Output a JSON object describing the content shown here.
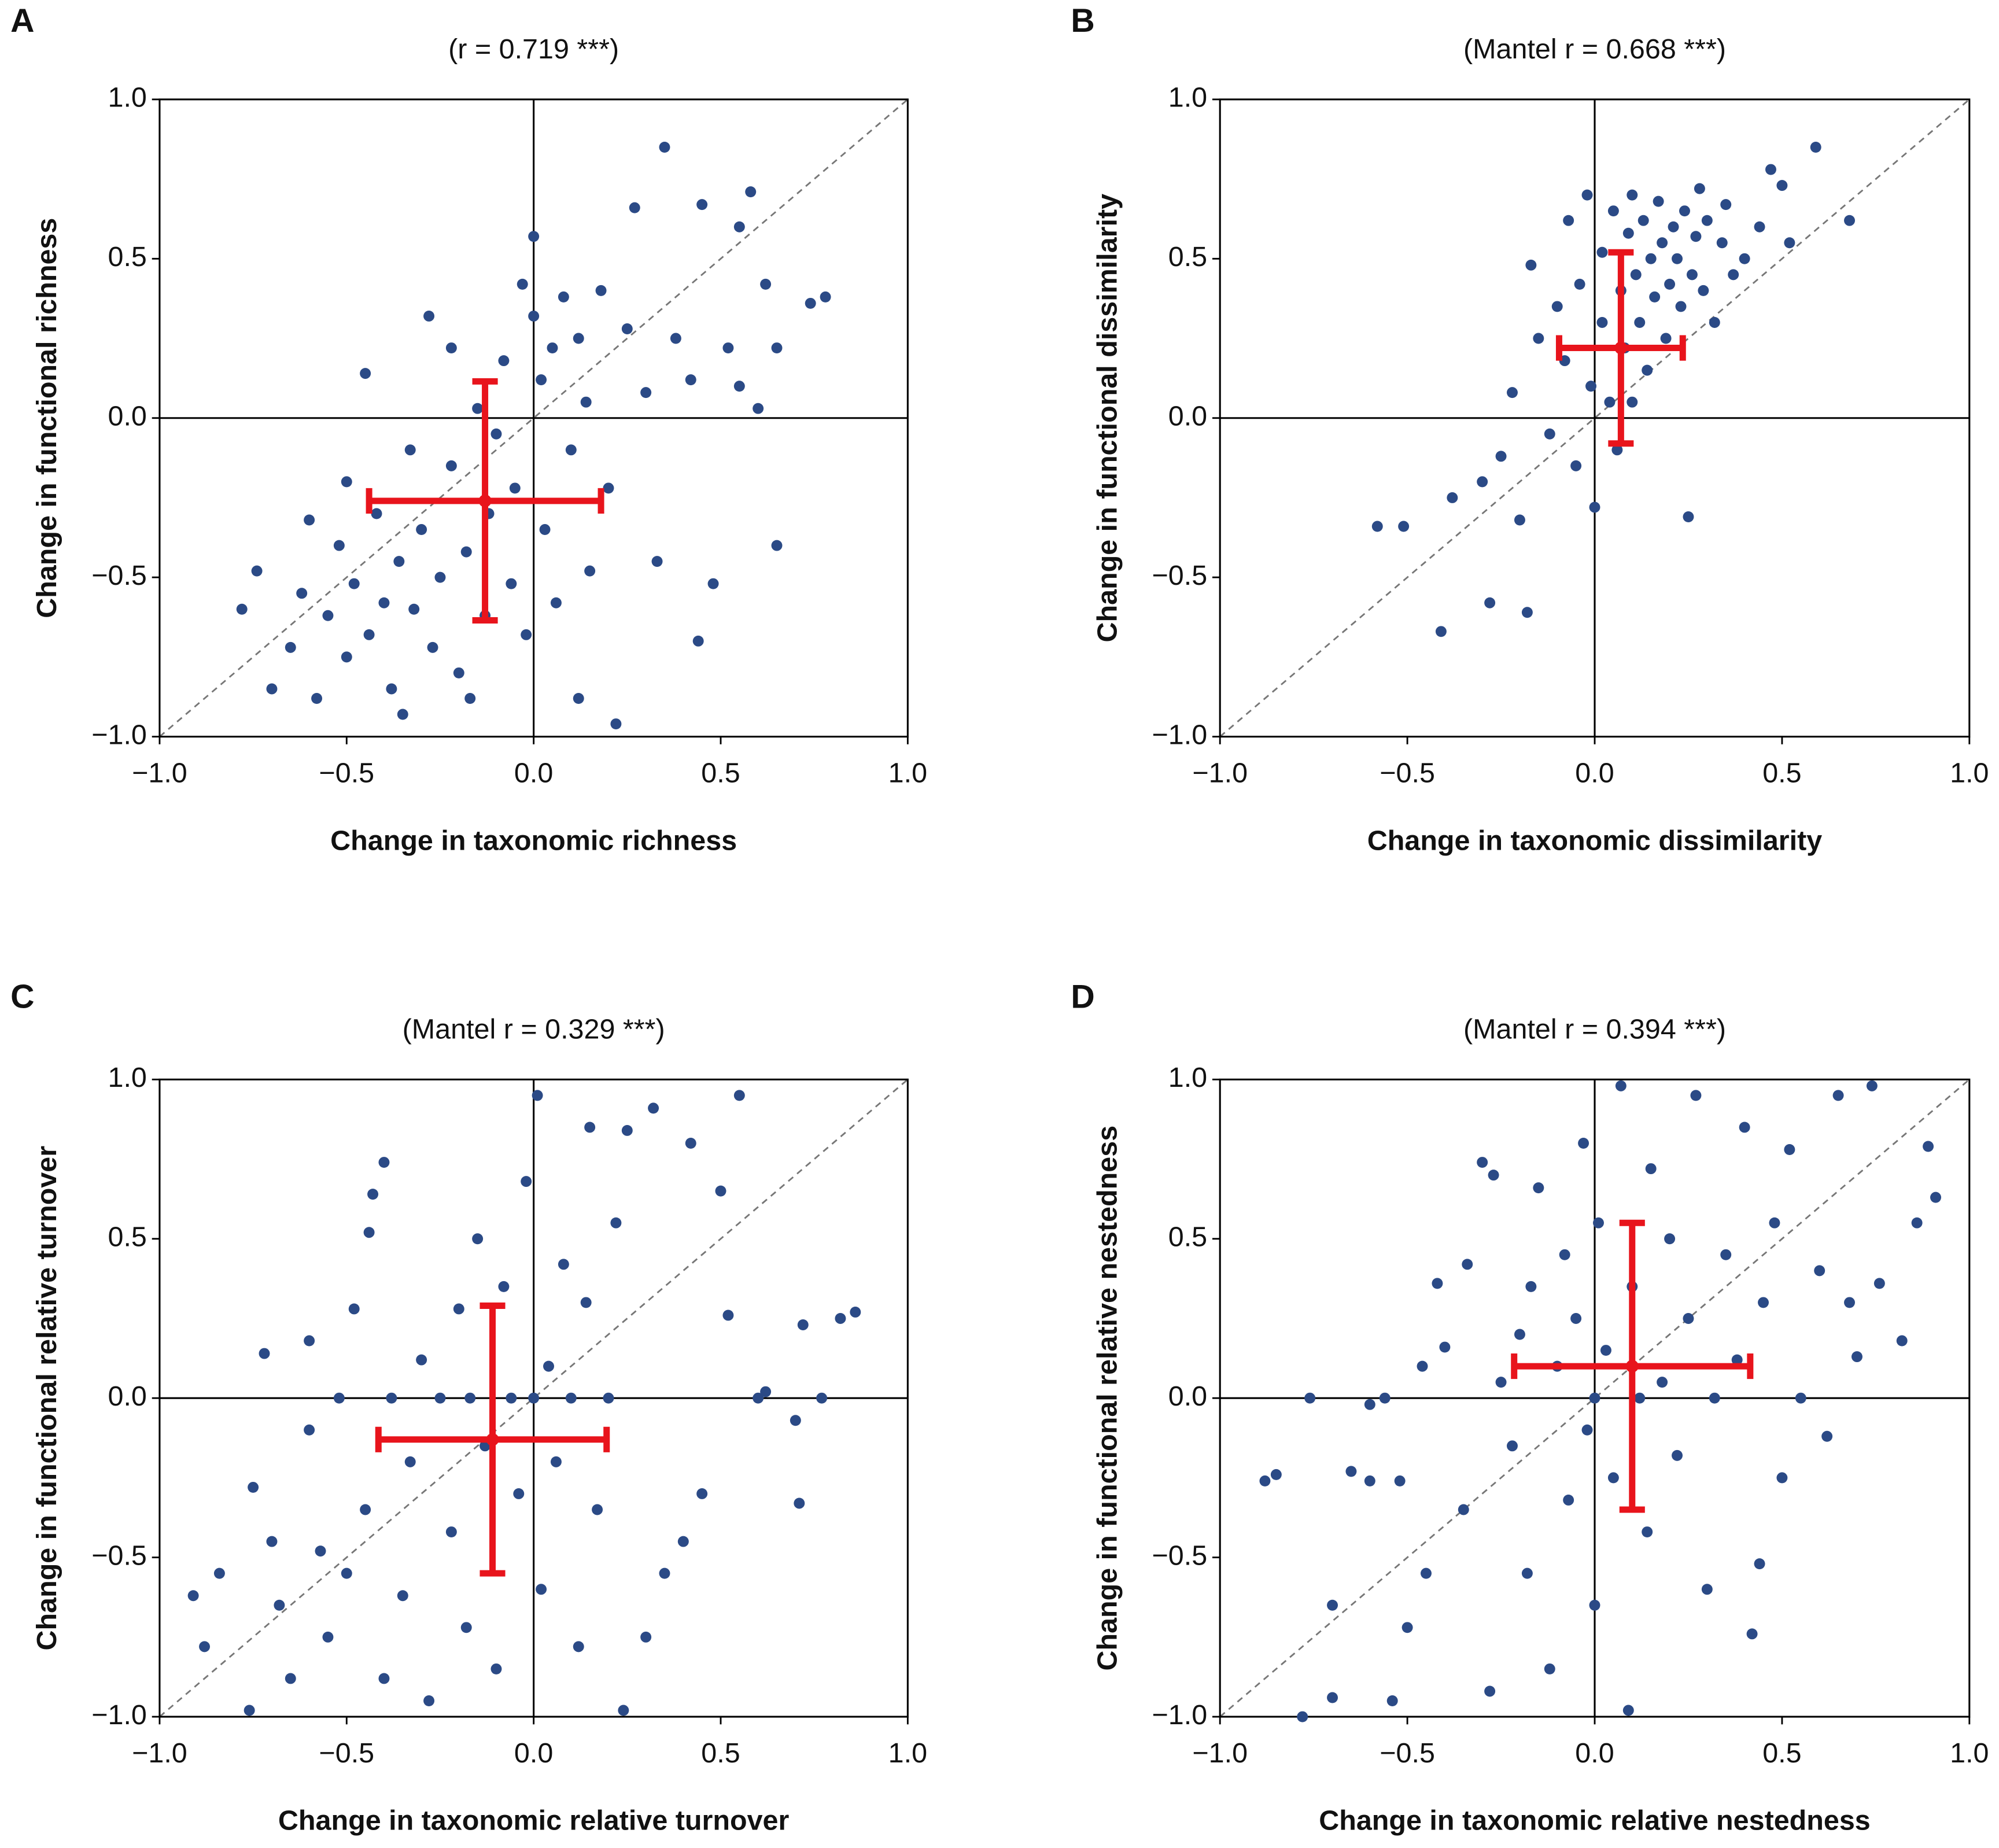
{
  "chart_data": [
    {
      "type": "scatter",
      "label": "A",
      "title": "(r = 0.719 ***)",
      "xlabel": "Change in taxonomic richness",
      "ylabel": "Change in functional richness",
      "color": "#2b4a86",
      "x": [
        -0.78,
        -0.74,
        -0.7,
        -0.65,
        -0.62,
        -0.6,
        -0.58,
        -0.55,
        -0.52,
        -0.5,
        -0.5,
        -0.48,
        -0.45,
        -0.44,
        -0.42,
        -0.4,
        -0.38,
        -0.36,
        -0.35,
        -0.33,
        -0.32,
        -0.3,
        -0.28,
        -0.27,
        -0.25,
        -0.22,
        -0.2,
        -0.22,
        -0.18,
        -0.15,
        -0.13,
        -0.12,
        -0.1,
        -0.08,
        -0.06,
        -0.05,
        -0.03,
        -0.02,
        0.0,
        0.0,
        0.02,
        0.03,
        0.05,
        0.06,
        0.08,
        0.1,
        0.12,
        0.14,
        0.15,
        0.18,
        0.2,
        0.22,
        0.25,
        0.27,
        0.3,
        0.33,
        0.35,
        0.38,
        0.42,
        0.44,
        0.45,
        0.48,
        0.52,
        0.55,
        0.58,
        0.6,
        0.62,
        0.65,
        0.65,
        0.74,
        0.78,
        0.55,
        -0.17,
        0.12
      ],
      "values": [
        -0.6,
        -0.48,
        -0.85,
        -0.72,
        -0.55,
        -0.32,
        -0.88,
        -0.62,
        -0.4,
        -0.75,
        -0.2,
        -0.52,
        0.14,
        -0.68,
        -0.3,
        -0.58,
        -0.85,
        -0.45,
        -0.93,
        -0.1,
        -0.6,
        -0.35,
        0.32,
        -0.72,
        -0.5,
        -0.15,
        -0.8,
        0.22,
        -0.42,
        0.03,
        -0.62,
        -0.3,
        -0.05,
        0.18,
        -0.52,
        -0.22,
        0.42,
        -0.68,
        0.32,
        0.57,
        0.12,
        -0.35,
        0.22,
        -0.58,
        0.38,
        -0.1,
        0.25,
        0.05,
        -0.48,
        0.4,
        -0.22,
        -0.96,
        0.28,
        0.66,
        0.08,
        -0.45,
        0.85,
        0.25,
        0.12,
        -0.7,
        0.67,
        -0.52,
        0.22,
        0.1,
        0.71,
        0.03,
        0.42,
        -0.4,
        0.22,
        0.36,
        0.38,
        0.6,
        -0.88,
        -0.88
      ],
      "mean": {
        "x": -0.13,
        "y": -0.26
      },
      "sd": {
        "x": 0.31,
        "y": 0.375
      },
      "error_color": "#e8141c",
      "xlim": [
        -1,
        1
      ],
      "ylim": [
        -1,
        1
      ],
      "xticks": [
        {
          "value": -1,
          "label": "−1.0"
        },
        {
          "value": -0.5,
          "label": "−0.5"
        },
        {
          "value": 0,
          "label": "0.0"
        },
        {
          "value": 0.5,
          "label": "0.5"
        },
        {
          "value": 1,
          "label": "1.0"
        }
      ],
      "yticks": [
        {
          "value": -1,
          "label": "−1.0"
        },
        {
          "value": -0.5,
          "label": "−0.5"
        },
        {
          "value": 0,
          "label": "0.0"
        },
        {
          "value": 0.5,
          "label": "0.5"
        },
        {
          "value": 1,
          "label": "1.0"
        }
      ]
    },
    {
      "type": "scatter",
      "label": "B",
      "title": "(Mantel r = 0.668 ***)",
      "xlabel": "Change in taxonomic dissimilarity",
      "ylabel": "Change in functional dissimilarity",
      "color": "#2b4a86",
      "x": [
        -0.58,
        -0.51,
        -0.41,
        -0.38,
        -0.3,
        -0.28,
        -0.25,
        -0.22,
        -0.2,
        -0.18,
        -0.17,
        -0.15,
        -0.12,
        -0.1,
        -0.08,
        -0.07,
        -0.05,
        -0.04,
        -0.02,
        -0.01,
        0.0,
        0.02,
        0.02,
        0.04,
        0.05,
        0.06,
        0.07,
        0.08,
        0.09,
        0.1,
        0.11,
        0.12,
        0.13,
        0.14,
        0.15,
        0.16,
        0.17,
        0.18,
        0.19,
        0.2,
        0.21,
        0.22,
        0.23,
        0.24,
        0.25,
        0.26,
        0.27,
        0.29,
        0.3,
        0.32,
        0.34,
        0.35,
        0.37,
        0.4,
        0.44,
        0.47,
        0.5,
        0.52,
        0.59,
        0.68,
        0.1,
        0.28
      ],
      "values": [
        -0.34,
        -0.34,
        -0.67,
        -0.25,
        -0.2,
        -0.58,
        -0.12,
        0.08,
        -0.32,
        -0.61,
        0.48,
        0.25,
        -0.05,
        0.35,
        0.18,
        0.62,
        -0.15,
        0.42,
        0.7,
        0.1,
        -0.28,
        0.3,
        0.52,
        0.05,
        0.65,
        -0.1,
        0.4,
        0.22,
        0.58,
        0.05,
        0.45,
        0.3,
        0.62,
        0.15,
        0.5,
        0.38,
        0.68,
        0.55,
        0.25,
        0.42,
        0.6,
        0.5,
        0.35,
        0.65,
        -0.31,
        0.45,
        0.57,
        0.4,
        0.62,
        0.3,
        0.55,
        0.67,
        0.45,
        0.5,
        0.6,
        0.78,
        0.73,
        0.55,
        0.85,
        0.62,
        0.7,
        0.72
      ],
      "mean": {
        "x": 0.07,
        "y": 0.22
      },
      "sd": {
        "x": 0.165,
        "y": 0.3
      },
      "error_color": "#e8141c",
      "xlim": [
        -1,
        1
      ],
      "ylim": [
        -1,
        1
      ],
      "xticks": [
        {
          "value": -1,
          "label": "−1.0"
        },
        {
          "value": -0.5,
          "label": "−0.5"
        },
        {
          "value": 0,
          "label": "0.0"
        },
        {
          "value": 0.5,
          "label": "0.5"
        },
        {
          "value": 1,
          "label": "1.0"
        }
      ],
      "yticks": [
        {
          "value": -1,
          "label": "−1.0"
        },
        {
          "value": -0.5,
          "label": "−0.5"
        },
        {
          "value": 0,
          "label": "0.0"
        },
        {
          "value": 0.5,
          "label": "0.5"
        },
        {
          "value": 1,
          "label": "1.0"
        }
      ]
    },
    {
      "type": "scatter",
      "label": "C",
      "title": "(Mantel r = 0.329 ***)",
      "xlabel": "Change in taxonomic relative turnover",
      "ylabel": "Change in functional relative turnover",
      "color": "#2b4a86",
      "x": [
        -0.91,
        -0.88,
        -0.84,
        -0.76,
        -0.75,
        -0.72,
        -0.7,
        -0.68,
        -0.65,
        -0.6,
        -0.6,
        -0.57,
        -0.55,
        -0.52,
        -0.5,
        -0.48,
        -0.45,
        -0.44,
        -0.43,
        -0.4,
        -0.4,
        -0.38,
        -0.35,
        -0.33,
        -0.3,
        -0.28,
        -0.25,
        -0.22,
        -0.2,
        -0.18,
        -0.17,
        -0.15,
        -0.13,
        -0.1,
        -0.08,
        -0.06,
        -0.04,
        -0.02,
        0.0,
        0.01,
        0.02,
        0.04,
        0.06,
        0.08,
        0.1,
        0.12,
        0.14,
        0.15,
        0.17,
        0.2,
        0.22,
        0.24,
        0.25,
        0.3,
        0.32,
        0.35,
        0.4,
        0.42,
        0.45,
        0.5,
        0.52,
        0.55,
        0.6,
        0.62,
        0.7,
        0.71,
        0.72,
        0.77,
        0.82,
        0.86
      ],
      "values": [
        -0.62,
        -0.78,
        -0.55,
        -0.98,
        -0.28,
        0.14,
        -0.45,
        -0.65,
        -0.88,
        -0.1,
        0.18,
        -0.48,
        -0.75,
        0.0,
        -0.55,
        0.28,
        -0.35,
        0.52,
        0.64,
        0.74,
        -0.88,
        0.0,
        -0.62,
        -0.2,
        0.12,
        -0.95,
        0.0,
        -0.42,
        0.28,
        -0.72,
        0.0,
        0.5,
        -0.15,
        -0.85,
        0.35,
        0.0,
        -0.3,
        0.68,
        0.0,
        0.95,
        -0.6,
        0.1,
        -0.2,
        0.42,
        0.0,
        -0.78,
        0.3,
        0.85,
        -0.35,
        0.0,
        0.55,
        -0.98,
        0.84,
        -0.75,
        0.91,
        -0.55,
        -0.45,
        0.8,
        -0.3,
        0.65,
        0.26,
        0.95,
        0.0,
        0.02,
        -0.07,
        -0.33,
        0.23,
        0.0,
        0.25,
        0.27
      ],
      "mean": {
        "x": -0.11,
        "y": -0.13
      },
      "sd": {
        "x": 0.305,
        "y": 0.42
      },
      "error_color": "#e8141c",
      "xlim": [
        -1,
        1
      ],
      "ylim": [
        -1,
        1
      ],
      "xticks": [
        {
          "value": -1,
          "label": "−1.0"
        },
        {
          "value": -0.5,
          "label": "−0.5"
        },
        {
          "value": 0,
          "label": "0.0"
        },
        {
          "value": 0.5,
          "label": "0.5"
        },
        {
          "value": 1,
          "label": "1.0"
        }
      ],
      "yticks": [
        {
          "value": -1,
          "label": "−1.0"
        },
        {
          "value": -0.5,
          "label": "−0.5"
        },
        {
          "value": 0,
          "label": "0.0"
        },
        {
          "value": 0.5,
          "label": "0.5"
        },
        {
          "value": 1,
          "label": "1.0"
        }
      ]
    },
    {
      "type": "scatter",
      "label": "D",
      "title": "(Mantel r = 0.394 ***)",
      "xlabel": "Change in taxonomic relative nestedness",
      "ylabel": "Change in functional relative nestedness",
      "color": "#2b4a86",
      "x": [
        -0.88,
        -0.85,
        -0.78,
        -0.76,
        -0.7,
        -0.7,
        -0.65,
        -0.6,
        -0.6,
        -0.56,
        -0.54,
        -0.52,
        -0.5,
        -0.46,
        -0.45,
        -0.42,
        -0.4,
        -0.35,
        -0.34,
        -0.3,
        -0.28,
        -0.27,
        -0.25,
        -0.22,
        -0.2,
        -0.18,
        -0.17,
        -0.15,
        -0.12,
        -0.1,
        -0.08,
        -0.07,
        -0.05,
        -0.03,
        -0.02,
        0.0,
        0.0,
        0.01,
        0.03,
        0.05,
        0.07,
        0.09,
        0.1,
        0.12,
        0.14,
        0.15,
        0.18,
        0.2,
        0.22,
        0.25,
        0.27,
        0.3,
        0.32,
        0.35,
        0.38,
        0.4,
        0.42,
        0.44,
        0.45,
        0.48,
        0.5,
        0.52,
        0.55,
        0.6,
        0.62,
        0.65,
        0.68,
        0.7,
        0.74,
        0.76,
        0.82,
        0.86,
        0.89,
        0.91
      ],
      "values": [
        -0.26,
        -0.24,
        -1.0,
        0.0,
        -0.65,
        -0.94,
        -0.23,
        -0.26,
        -0.02,
        0.0,
        -0.95,
        -0.26,
        -0.72,
        0.1,
        -0.55,
        0.36,
        0.16,
        -0.35,
        0.42,
        0.74,
        -0.92,
        0.7,
        0.05,
        -0.15,
        0.2,
        -0.55,
        0.35,
        0.66,
        -0.85,
        0.1,
        0.45,
        -0.32,
        0.25,
        0.8,
        -0.1,
        0.0,
        -0.65,
        0.55,
        0.15,
        -0.25,
        0.98,
        -0.98,
        0.35,
        0.0,
        -0.42,
        0.72,
        0.05,
        0.5,
        -0.18,
        0.25,
        0.95,
        -0.6,
        0.0,
        0.45,
        0.12,
        0.85,
        -0.74,
        -0.52,
        0.3,
        0.55,
        -0.25,
        0.78,
        0.0,
        0.4,
        -0.12,
        0.95,
        0.3,
        0.13,
        0.98,
        0.36,
        0.18,
        0.55,
        0.79,
        0.63
      ],
      "mean": {
        "x": 0.1,
        "y": 0.1
      },
      "sd": {
        "x": 0.315,
        "y": 0.45
      },
      "error_color": "#e8141c",
      "xlim": [
        -1,
        1
      ],
      "ylim": [
        -1,
        1
      ],
      "xticks": [
        {
          "value": -1,
          "label": "−1.0"
        },
        {
          "value": -0.5,
          "label": "−0.5"
        },
        {
          "value": 0,
          "label": "0.0"
        },
        {
          "value": 0.5,
          "label": "0.5"
        },
        {
          "value": 1,
          "label": "1.0"
        }
      ],
      "yticks": [
        {
          "value": -1,
          "label": "−1.0"
        },
        {
          "value": -0.5,
          "label": "−0.5"
        },
        {
          "value": 0,
          "label": "0.0"
        },
        {
          "value": 0.5,
          "label": "0.5"
        },
        {
          "value": 1,
          "label": "1.0"
        }
      ]
    }
  ]
}
